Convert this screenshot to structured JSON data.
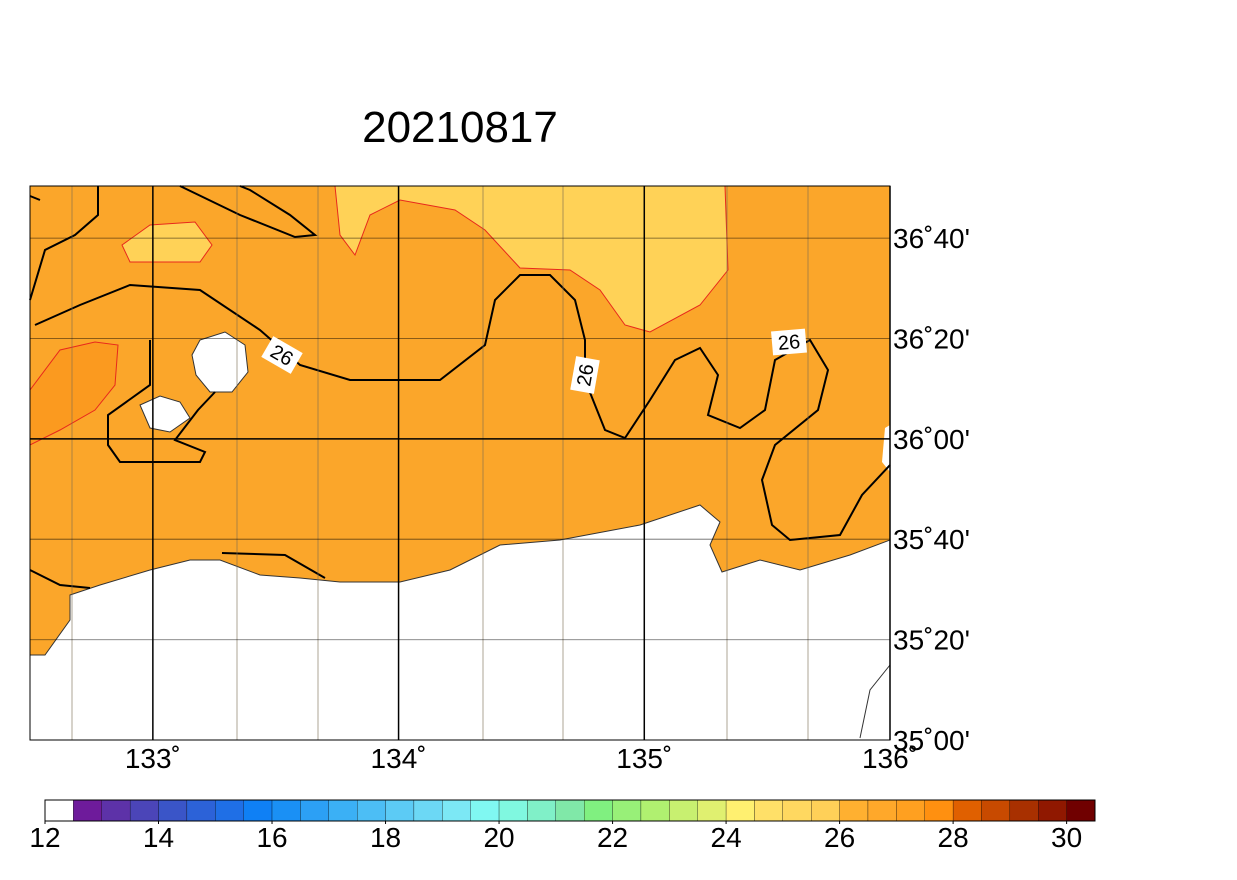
{
  "map": {
    "title": "20210817",
    "xlim": [
      132.5,
      136
    ],
    "ylim": [
      35,
      36.84
    ],
    "xticks": [
      {
        "value": 133,
        "label": "133˚"
      },
      {
        "value": 134,
        "label": "134˚"
      },
      {
        "value": 135,
        "label": "135˚"
      },
      {
        "value": 136,
        "label": "136˚"
      }
    ],
    "yticks": [
      {
        "value": 35,
        "label": "35˚00'"
      },
      {
        "value": 35.333,
        "label": "35˚20'"
      },
      {
        "value": 35.667,
        "label": "35˚40'"
      },
      {
        "value": 36,
        "label": "36˚00'"
      },
      {
        "value": 36.333,
        "label": "36˚20'"
      },
      {
        "value": 36.667,
        "label": "36˚40'"
      }
    ],
    "contour_labels": [
      "26",
      "26",
      "26"
    ],
    "colorbar": {
      "lim": [
        12,
        30.5
      ],
      "ticks": [
        12,
        14,
        16,
        18,
        20,
        22,
        24,
        26,
        28,
        30
      ],
      "colors": [
        "#ffffff",
        "#6e1b9b",
        "#5d32a8",
        "#4b45b8",
        "#3a55c8",
        "#2c62d8",
        "#1f6fe6",
        "#0f80f5",
        "#1a90f5",
        "#2ca0f5",
        "#3bb0f5",
        "#4cbef5",
        "#5ccbf5",
        "#6cd8f5",
        "#7ce8f5",
        "#80f8f2",
        "#80f8e0",
        "#80f0c8",
        "#80e8a8",
        "#80f080",
        "#98f078",
        "#b0f070",
        "#c8f070",
        "#e0f070",
        "#fff070",
        "#ffe068",
        "#ffd860",
        "#ffd058",
        "#ffb030",
        "#ffa82a",
        "#ffa020",
        "#ff9010",
        "#e06000",
        "#c84a00",
        "#a83000",
        "#901800",
        "#700000"
      ]
    }
  }
}
